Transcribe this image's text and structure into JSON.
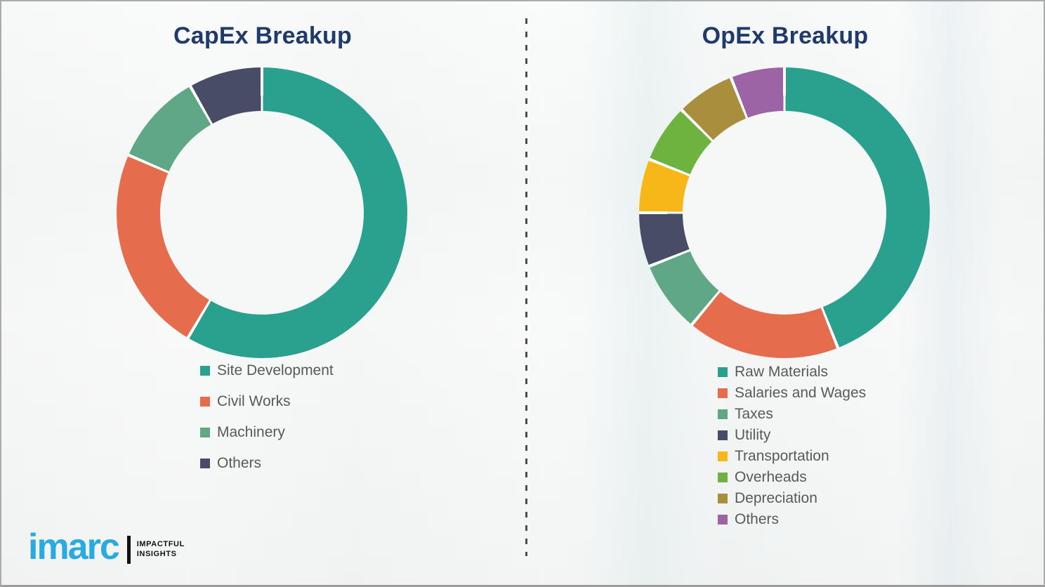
{
  "page": {
    "background_color": "#f5f6f6",
    "border_color": "#a9acae",
    "legend_text_color": "#595959",
    "title_color": "#203a6b",
    "divider_dash_color": "#4d4d4d",
    "separator_color": "#ffffff"
  },
  "chart_data": [
    {
      "type": "donut",
      "title": "CapEx Breakup",
      "labels": [
        "Site Development",
        "Civil Works",
        "Machinery",
        "Others"
      ],
      "values": [
        58.5,
        23,
        10.3,
        8.2
      ],
      "colors": [
        "#2aa08f",
        "#e66c4e",
        "#60a785",
        "#494c67"
      ],
      "unit": "percent-of-total",
      "start_angle_deg": 0,
      "direction": "clockwise",
      "legend_position": "below-chart-left",
      "data_labels_shown": false
    },
    {
      "type": "donut",
      "title": "OpEx Breakup",
      "labels": [
        "Raw Materials",
        "Salaries and Wages",
        "Taxes",
        "Utility",
        "Transportation",
        "Overheads",
        "Depreciation",
        "Others"
      ],
      "values": [
        44,
        17,
        8,
        6,
        6,
        6.5,
        6.5,
        6
      ],
      "colors": [
        "#2aa08f",
        "#e66c4e",
        "#60a785",
        "#494c67",
        "#f7b718",
        "#6eb33f",
        "#a98e3e",
        "#9d64a5"
      ],
      "unit": "percent-of-total",
      "start_angle_deg": 0,
      "direction": "clockwise",
      "legend_position": "below-chart-left",
      "data_labels_shown": false
    }
  ],
  "logo": {
    "wordmark": "imarc",
    "tagline_line1": "IMPACTFUL",
    "tagline_line2": "INSIGHTS",
    "brand_blue": "#29abe2"
  }
}
